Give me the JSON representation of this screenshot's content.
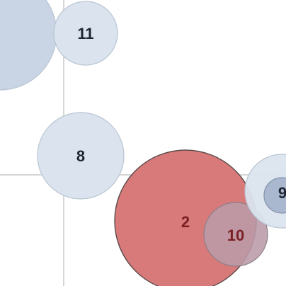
{
  "canvas": {
    "bubbles": [
      {
        "id": "bubble-unlabeled-left",
        "label": "",
        "fill": "#c9d5e5",
        "stroke": "#b8c3d2"
      },
      {
        "id": "bubble-11",
        "label": "11",
        "fill": "#dbe4ee",
        "stroke": "#b8c3d2"
      },
      {
        "id": "bubble-8",
        "label": "8",
        "fill": "#dbe4ee",
        "stroke": "#b8c3d2"
      },
      {
        "id": "bubble-2",
        "label": "2",
        "fill": "#d97a7a",
        "stroke": "#5b4b4b"
      },
      {
        "id": "bubble-10",
        "label": "10",
        "fill": "#b99ba9",
        "stroke": "#8b7f87"
      },
      {
        "id": "bubble-9-outer",
        "label": "",
        "fill": "#dbe4ee",
        "stroke": "#b8c3d2"
      },
      {
        "id": "bubble-9",
        "label": "9",
        "fill": "#a9b8cf",
        "stroke": "#8192aa"
      }
    ],
    "colors": {
      "background": "#ffffff",
      "guide_line": "#c8c8c8",
      "label_dark": "#1e2430",
      "label_red": "#7a1f24"
    }
  }
}
